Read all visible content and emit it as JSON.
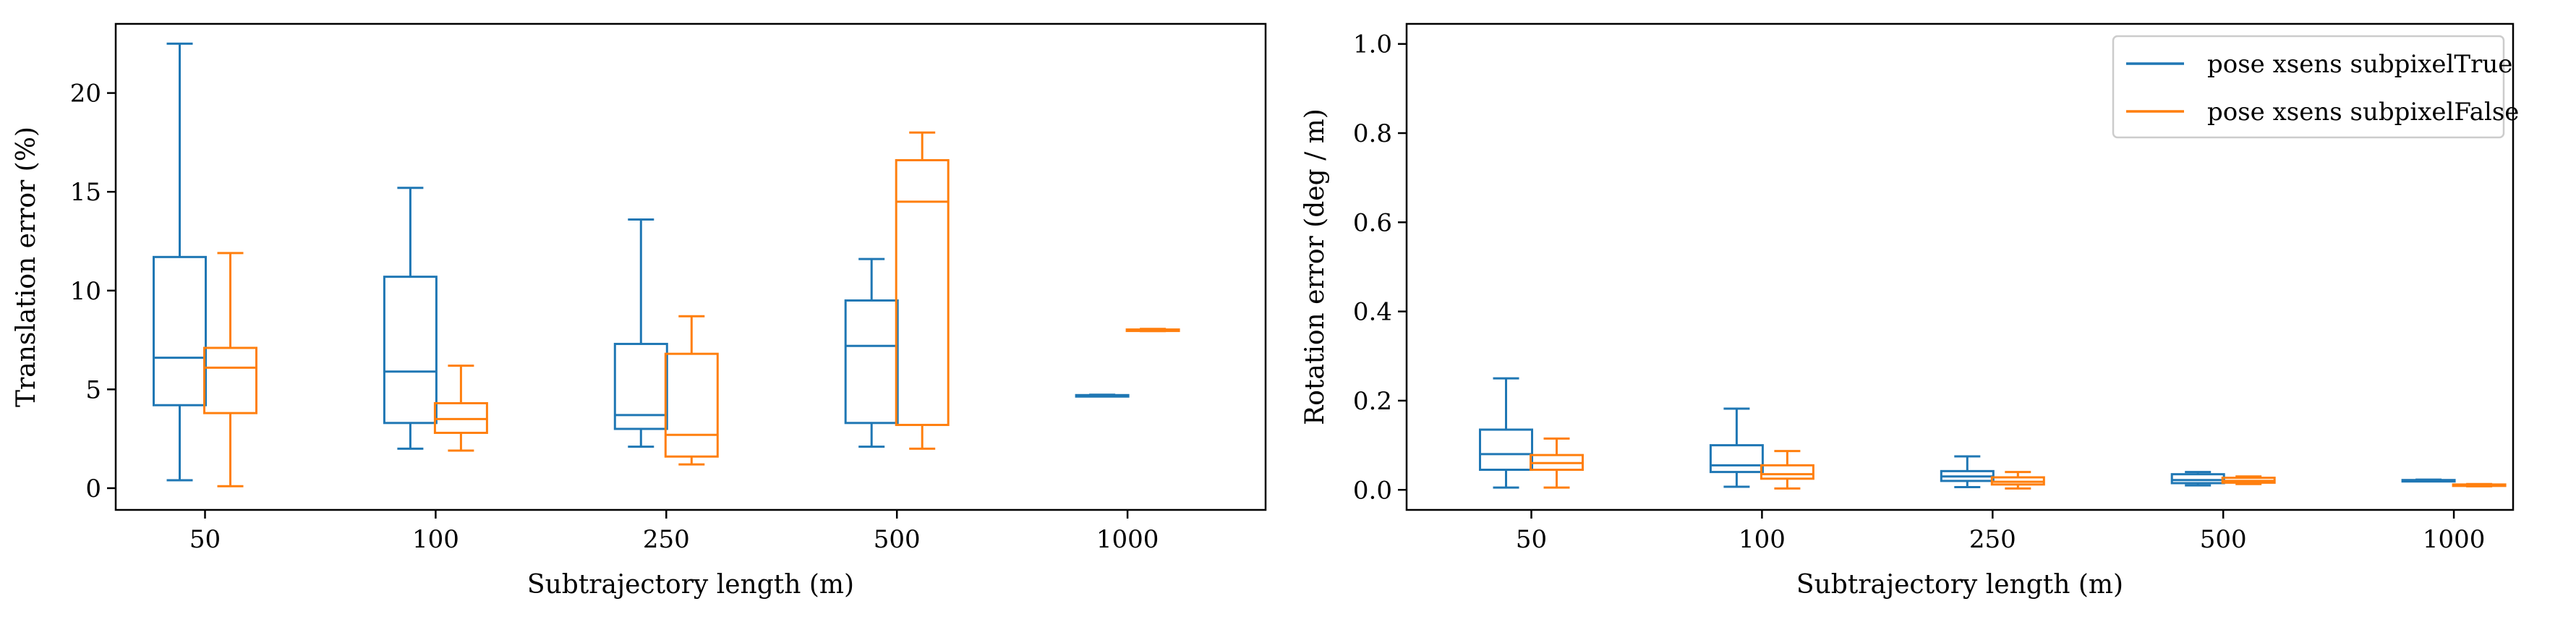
{
  "chart_data": [
    {
      "type": "box",
      "xlabel": "Subtrajectory length (m)",
      "ylabel": "Translation error (%)",
      "categories": [
        "50",
        "100",
        "250",
        "500",
        "1000"
      ],
      "ylim": [
        -1.1,
        23.5
      ],
      "yticks": [
        0,
        5,
        10,
        15,
        20
      ],
      "grid": false,
      "series": [
        {
          "color": "#1f77b4",
          "boxes": [
            {
              "whislo": 0.4,
              "q1": 4.2,
              "med": 6.6,
              "q3": 11.7,
              "whishi": 22.5
            },
            {
              "whislo": 2.0,
              "q1": 3.3,
              "med": 5.9,
              "q3": 10.7,
              "whishi": 15.2
            },
            {
              "whislo": 2.1,
              "q1": 3.0,
              "med": 3.7,
              "q3": 7.3,
              "whishi": 13.6
            },
            {
              "whislo": 2.1,
              "q1": 3.3,
              "med": 7.2,
              "q3": 9.5,
              "whishi": 11.6
            },
            {
              "whislo": 4.67,
              "q1": 4.69,
              "med": 4.7,
              "q3": 4.71,
              "whishi": 4.73
            }
          ]
        },
        {
          "color": "#ff7f0e",
          "boxes": [
            {
              "whislo": 0.1,
              "q1": 3.8,
              "med": 6.1,
              "q3": 7.1,
              "whishi": 11.9
            },
            {
              "whislo": 1.9,
              "q1": 2.8,
              "med": 3.5,
              "q3": 4.3,
              "whishi": 6.2
            },
            {
              "whislo": 1.2,
              "q1": 1.6,
              "med": 2.7,
              "q3": 6.8,
              "whishi": 8.7
            },
            {
              "whislo": 2.0,
              "q1": 3.2,
              "med": 14.5,
              "q3": 16.6,
              "whishi": 18.0
            },
            {
              "whislo": 7.95,
              "q1": 7.98,
              "med": 8.0,
              "q3": 8.03,
              "whishi": 8.06
            }
          ]
        }
      ]
    },
    {
      "type": "box",
      "xlabel": "Subtrajectory length (m)",
      "ylabel": "Rotation error (deg / m)",
      "categories": [
        "50",
        "100",
        "250",
        "500",
        "1000"
      ],
      "ylim": [
        -0.045,
        1.045
      ],
      "yticks": [
        0.0,
        0.2,
        0.4,
        0.6,
        0.8,
        1.0
      ],
      "grid": false,
      "legend_position": "top-right",
      "series": [
        {
          "name": "pose xsens subpixelTrue",
          "color": "#1f77b4",
          "boxes": [
            {
              "whislo": 0.005,
              "q1": 0.045,
              "med": 0.08,
              "q3": 0.135,
              "whishi": 0.25
            },
            {
              "whislo": 0.007,
              "q1": 0.04,
              "med": 0.055,
              "q3": 0.1,
              "whishi": 0.182
            },
            {
              "whislo": 0.006,
              "q1": 0.02,
              "med": 0.03,
              "q3": 0.042,
              "whishi": 0.075
            },
            {
              "whislo": 0.01,
              "q1": 0.015,
              "med": 0.022,
              "q3": 0.035,
              "whishi": 0.04
            },
            {
              "whislo": 0.019,
              "q1": 0.02,
              "med": 0.021,
              "q3": 0.022,
              "whishi": 0.023
            }
          ]
        },
        {
          "name": "pose xsens subpixelFalse",
          "color": "#ff7f0e",
          "boxes": [
            {
              "whislo": 0.005,
              "q1": 0.045,
              "med": 0.06,
              "q3": 0.078,
              "whishi": 0.115
            },
            {
              "whislo": 0.003,
              "q1": 0.025,
              "med": 0.035,
              "q3": 0.055,
              "whishi": 0.087
            },
            {
              "whislo": 0.003,
              "q1": 0.012,
              "med": 0.018,
              "q3": 0.028,
              "whishi": 0.04
            },
            {
              "whislo": 0.013,
              "q1": 0.016,
              "med": 0.02,
              "q3": 0.027,
              "whishi": 0.03
            },
            {
              "whislo": 0.008,
              "q1": 0.009,
              "med": 0.01,
              "q3": 0.012,
              "whishi": 0.013
            }
          ]
        }
      ]
    }
  ]
}
